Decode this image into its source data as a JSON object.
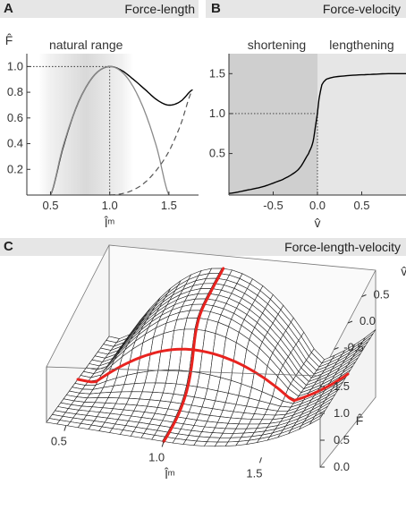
{
  "panels": {
    "a": {
      "letter": "A",
      "title": "Force-length"
    },
    "b": {
      "letter": "B",
      "title": "Force-velocity"
    },
    "c": {
      "letter": "C",
      "title": "Force-length-velocity"
    }
  },
  "colors": {
    "curve": "#000000",
    "gray_curve": "#8a8a8a",
    "highlight": "#e8231f",
    "shade": "#cfcfcf",
    "shade_light": "#e6e6e6"
  },
  "chart_data": [
    {
      "type": "line",
      "xlabel": "l̂ᵐ",
      "ylabel": "F̂",
      "xlim": [
        0.3,
        1.75
      ],
      "ylim": [
        0,
        1.1
      ],
      "x_ticks": [
        0.5,
        1.0,
        1.5
      ],
      "y_ticks": [
        0.2,
        0.4,
        0.6,
        0.8,
        1.0
      ],
      "annotations": [
        "natural range"
      ],
      "shaded_region_x": [
        0.4,
        1.2
      ],
      "reference_lines": [
        {
          "x": 1.0,
          "y": 1.0
        }
      ],
      "series": [
        {
          "style": "solid-black",
          "x": [
            0.5,
            0.6,
            0.7,
            0.8,
            0.9,
            1.0,
            1.1,
            1.2,
            1.3,
            1.4,
            1.5,
            1.6,
            1.7
          ],
          "values": [
            0.0,
            0.35,
            0.64,
            0.84,
            0.96,
            1.0,
            0.97,
            0.9,
            0.82,
            0.74,
            0.7,
            0.73,
            0.82
          ]
        },
        {
          "style": "solid-gray",
          "x": [
            0.5,
            0.6,
            0.7,
            0.8,
            0.9,
            1.0,
            1.1,
            1.2,
            1.3,
            1.4,
            1.5
          ],
          "values": [
            0.0,
            0.36,
            0.64,
            0.84,
            0.96,
            1.0,
            0.96,
            0.84,
            0.64,
            0.36,
            0.0
          ]
        },
        {
          "style": "dashed-gray",
          "x": [
            1.0,
            1.1,
            1.2,
            1.3,
            1.4,
            1.5,
            1.6,
            1.7
          ],
          "values": [
            0.0,
            0.01,
            0.04,
            0.1,
            0.2,
            0.34,
            0.55,
            0.82
          ]
        }
      ]
    },
    {
      "type": "line",
      "xlabel": "v̂",
      "ylabel": "",
      "xlim": [
        -1.0,
        1.0
      ],
      "ylim": [
        -0.02,
        1.75
      ],
      "x_ticks": [
        -0.5,
        0.0,
        0.5
      ],
      "y_ticks": [
        0.5,
        1.0,
        1.5
      ],
      "annotations": [
        "shortening",
        "lengthening"
      ],
      "reference_lines": [
        {
          "x": 0.0,
          "y": 1.0
        }
      ],
      "series": [
        {
          "style": "solid-black",
          "x": [
            -1.0,
            -0.8,
            -0.6,
            -0.4,
            -0.3,
            -0.2,
            -0.1,
            -0.05,
            0.0,
            0.02,
            0.05,
            0.1,
            0.2,
            0.4,
            0.6,
            0.8,
            1.0
          ],
          "values": [
            0.0,
            0.04,
            0.09,
            0.17,
            0.23,
            0.32,
            0.5,
            0.65,
            1.0,
            1.2,
            1.36,
            1.43,
            1.46,
            1.48,
            1.49,
            1.5,
            1.5
          ]
        }
      ]
    },
    {
      "type": "surface3d",
      "xlabel": "l̂ᵐ",
      "ylabel": "v̂",
      "zlabel": "F̂",
      "x_ticks": [
        0.5,
        1.0,
        1.5
      ],
      "y_ticks": [
        0.5,
        0.0,
        -0.5
      ],
      "z_ticks": [
        0.0,
        0.5,
        1.0,
        1.5
      ],
      "xlim": [
        0.4,
        1.8
      ],
      "ylim": [
        -1.0,
        1.0
      ],
      "zlim": [
        0,
        1.7
      ],
      "highlight_curves": [
        "F̂ vs l̂ᵐ at v̂ = 0",
        "F̂ vs v̂ at l̂ᵐ = 1.0"
      ]
    }
  ]
}
